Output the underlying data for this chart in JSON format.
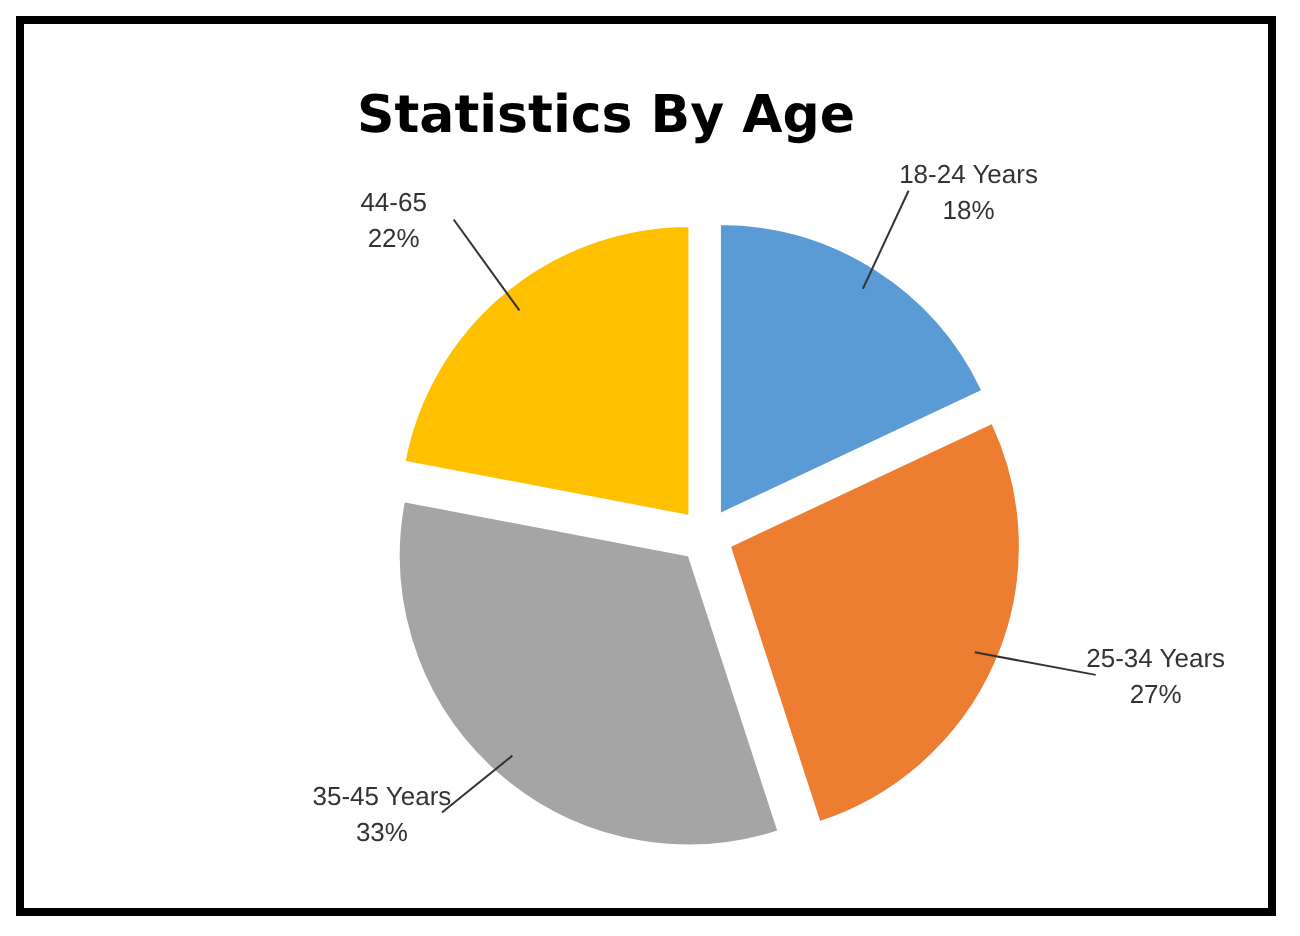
{
  "chart_data": {
    "type": "pie",
    "title": "Statistics By Age",
    "categories": [
      "18-24 Years",
      "25-34 Years",
      "35-45 Years",
      "44-65"
    ],
    "values": [
      18,
      27,
      33,
      22
    ],
    "value_labels": [
      "18%",
      "27%",
      "33%",
      "22%"
    ],
    "colors": [
      "#5b9bd5",
      "#ed7d31",
      "#a5a5a5",
      "#ffc000"
    ]
  }
}
